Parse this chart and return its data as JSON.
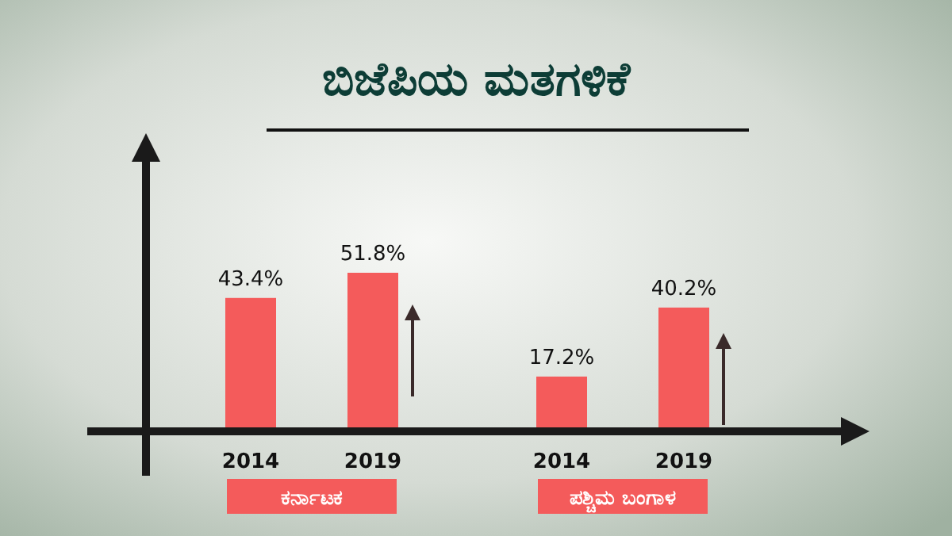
{
  "chart_data": {
    "type": "bar",
    "title": "ಬಿಜೆಪಿಯ ಮತಗಳಿಕೆ",
    "categories": [
      "2014",
      "2019",
      "2014",
      "2019"
    ],
    "values": [
      43.4,
      51.8,
      17.2,
      40.2
    ],
    "value_labels": [
      "43.4%",
      "51.8%",
      "17.2%",
      "40.2%"
    ],
    "color": "#f45b5b",
    "annotations": [
      "ಕರ್ನಾಟಕ",
      "ಪಶ್ಚಿಮ ಬಂಗಾಳ"
    ]
  }
}
